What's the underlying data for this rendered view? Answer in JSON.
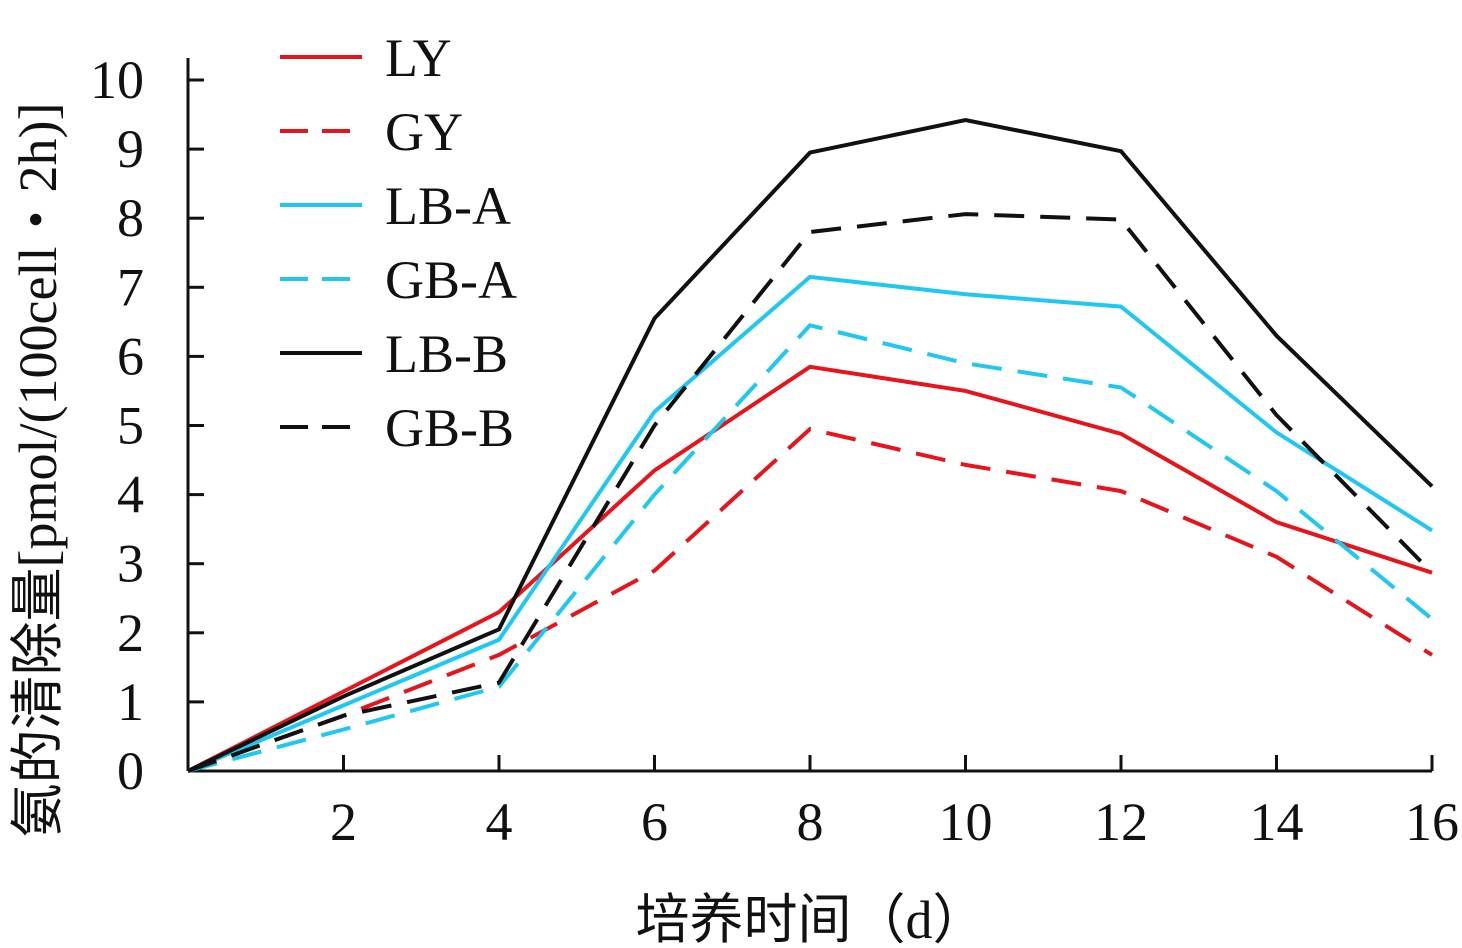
{
  "chart_data": {
    "type": "line",
    "title": "",
    "xlabel": "培养时间（d）",
    "ylabel": "氨的清除量[pmol/(100cell・2h)]",
    "x": [
      0,
      2,
      4,
      6,
      8,
      10,
      12,
      14,
      16
    ],
    "xticks": [
      "2",
      "4",
      "6",
      "8",
      "10",
      "12",
      "14",
      "16"
    ],
    "yticks": [
      "0",
      "1",
      "2",
      "3",
      "4",
      "5",
      "6",
      "7",
      "8",
      "9",
      "10"
    ],
    "xlim": [
      0,
      16
    ],
    "ylim": [
      0,
      10
    ],
    "grid": false,
    "legend_position": "top-left",
    "series": [
      {
        "name": "LY",
        "color": "#e8141c",
        "style": "solid",
        "values": [
          0,
          1.15,
          2.3,
          4.35,
          5.85,
          5.5,
          4.88,
          3.6,
          2.87
        ]
      },
      {
        "name": "GY",
        "color": "#e8141c",
        "style": "dashed",
        "values": [
          0,
          0.8,
          1.68,
          2.9,
          4.95,
          4.43,
          4.05,
          3.1,
          1.68
        ]
      },
      {
        "name": "LB-A",
        "color": "#1ec8f0",
        "style": "solid",
        "values": [
          0,
          0.95,
          1.9,
          5.2,
          7.15,
          6.9,
          6.72,
          4.9,
          3.48
        ]
      },
      {
        "name": "GB-A",
        "color": "#1ec8f0",
        "style": "dashed",
        "values": [
          0,
          0.6,
          1.22,
          4.0,
          6.45,
          5.9,
          5.55,
          4.05,
          2.2
        ]
      },
      {
        "name": "LB-B",
        "color": "#111111",
        "style": "solid",
        "values": [
          0,
          1.08,
          2.05,
          6.55,
          8.95,
          9.42,
          8.97,
          6.3,
          4.12
        ]
      },
      {
        "name": "GB-B",
        "color": "#111111",
        "style": "dashed",
        "values": [
          0,
          0.8,
          1.28,
          5.0,
          7.8,
          8.06,
          7.98,
          5.15,
          2.87
        ]
      }
    ]
  }
}
